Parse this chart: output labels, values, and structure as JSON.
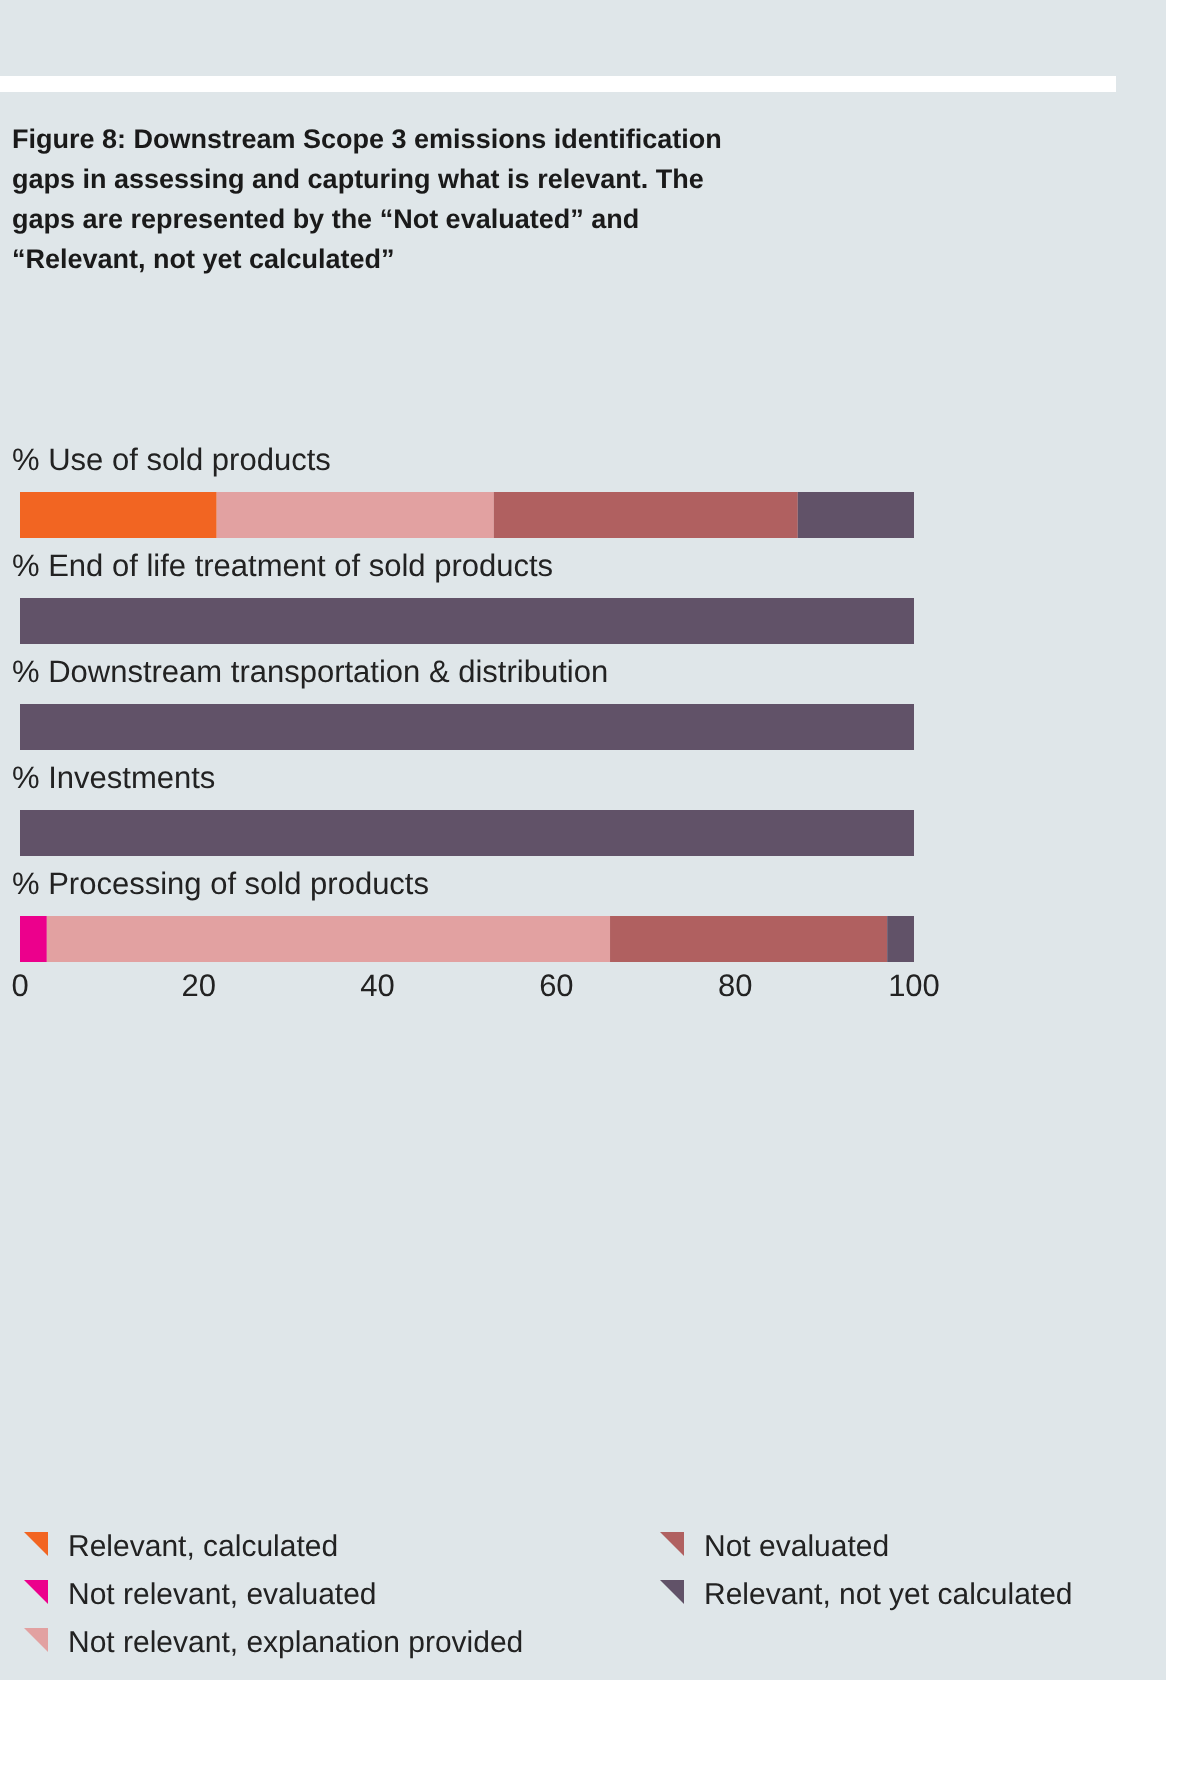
{
  "chart_data": {
    "type": "bar",
    "orientation": "horizontal",
    "stacked": true,
    "title": "Figure 8:  Downstream Scope 3 emissions identification gaps in assessing and capturing what is relevant. The gaps are represented by the “Not evaluated” and “Relevant, not yet calculated”",
    "categories": [
      "% Use of sold products",
      "% End of life treatment of sold products",
      "% Downstream transportation & distribution",
      "% Investments",
      "% Processing of sold products"
    ],
    "series": [
      {
        "name": "Relevant, calculated",
        "color": "#f26522",
        "values": [
          22,
          0,
          0,
          0,
          0
        ]
      },
      {
        "name": "Not relevant, evaluated",
        "color": "#ec008c",
        "values": [
          0,
          0,
          0,
          0,
          3
        ]
      },
      {
        "name": "Not relevant, explanation provided",
        "color": "#e2a1a1",
        "values": [
          31,
          0,
          0,
          0,
          63
        ]
      },
      {
        "name": "Not evaluated",
        "color": "#b06060",
        "values": [
          34,
          0,
          0,
          0,
          31
        ]
      },
      {
        "name": "Relevant, not yet calculated",
        "color": "#615268",
        "values": [
          13,
          100,
          100,
          100,
          3
        ]
      }
    ],
    "xlim": [
      0,
      100
    ],
    "xticks": [
      0,
      20,
      40,
      60,
      80,
      100
    ],
    "legend": "bottom"
  }
}
